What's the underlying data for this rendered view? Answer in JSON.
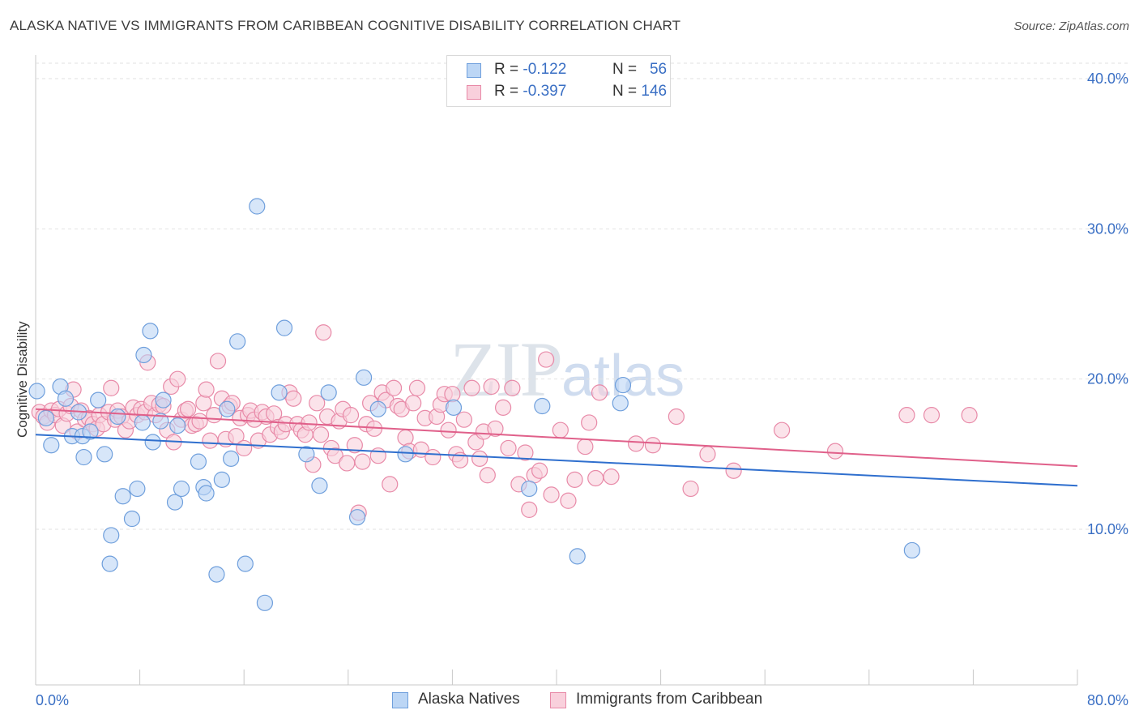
{
  "title": "ALASKA NATIVE VS IMMIGRANTS FROM CARIBBEAN COGNITIVE DISABILITY CORRELATION CHART",
  "source": "Source: ZipAtlas.com",
  "watermark": {
    "zip": "ZIP",
    "atlas": "atlas"
  },
  "legend": {
    "rows": [
      {
        "r_label": "R =",
        "r_value": "-0.122",
        "n_label": "N =",
        "n_value": "56",
        "color": "#a8c8f0",
        "border": "#6f9fdc"
      },
      {
        "r_label": "R =",
        "r_value": "-0.397",
        "n_label": "N =",
        "n_value": "146",
        "color": "#f7c0d0",
        "border": "#e88aa8"
      }
    ]
  },
  "bottom_legend": [
    {
      "label": "Alaska Natives",
      "color": "#bcd6f5",
      "border": "#6f9fdc"
    },
    {
      "label": "Immigrants from Caribbean",
      "color": "#f9d0dc",
      "border": "#e88aa8"
    }
  ],
  "chart_data": {
    "type": "scatter",
    "title": "ALASKA NATIVE VS IMMIGRANTS FROM CARIBBEAN COGNITIVE DISABILITY CORRELATION CHART",
    "xlabel": "",
    "ylabel": "Cognitive Disability",
    "xlim": [
      0,
      80
    ],
    "ylim": [
      0,
      41
    ],
    "x_tick_labels": [
      "0.0%",
      "80.0%"
    ],
    "y_ticks": [
      10,
      20,
      30,
      40
    ],
    "y_tick_labels": [
      "10.0%",
      "20.0%",
      "30.0%",
      "40.0%"
    ],
    "grid": true,
    "legend_position": "top-center",
    "series": [
      {
        "name": "Alaska Natives",
        "color": "#6f9fdc",
        "fill": "#bcd6f5",
        "line_color": "#2f6fce",
        "trend": {
          "x": [
            0,
            80
          ],
          "y": [
            16.3,
            12.9
          ]
        },
        "points": [
          [
            0.1,
            19.2
          ],
          [
            0.8,
            17.4
          ],
          [
            1.2,
            15.6
          ],
          [
            1.9,
            19.5
          ],
          [
            2.3,
            18.7
          ],
          [
            2.8,
            16.2
          ],
          [
            3.3,
            17.8
          ],
          [
            3.6,
            16.2
          ],
          [
            3.7,
            14.8
          ],
          [
            4.2,
            16.5
          ],
          [
            4.8,
            18.6
          ],
          [
            5.3,
            15.0
          ],
          [
            5.8,
            9.6
          ],
          [
            5.7,
            7.7
          ],
          [
            6.3,
            17.5
          ],
          [
            6.7,
            12.2
          ],
          [
            7.4,
            10.7
          ],
          [
            7.8,
            12.7
          ],
          [
            8.2,
            17.1
          ],
          [
            8.3,
            21.6
          ],
          [
            8.8,
            23.2
          ],
          [
            9.0,
            15.8
          ],
          [
            9.6,
            17.2
          ],
          [
            9.8,
            18.6
          ],
          [
            10.7,
            11.8
          ],
          [
            10.9,
            16.9
          ],
          [
            11.2,
            12.7
          ],
          [
            12.5,
            14.5
          ],
          [
            12.9,
            12.8
          ],
          [
            13.1,
            12.4
          ],
          [
            13.9,
            7.0
          ],
          [
            14.3,
            13.3
          ],
          [
            14.7,
            18.0
          ],
          [
            15.0,
            14.7
          ],
          [
            15.5,
            22.5
          ],
          [
            16.1,
            7.7
          ],
          [
            17.0,
            31.5
          ],
          [
            17.6,
            5.1
          ],
          [
            18.7,
            19.1
          ],
          [
            19.1,
            23.4
          ],
          [
            20.8,
            15.0
          ],
          [
            21.8,
            12.9
          ],
          [
            22.5,
            19.1
          ],
          [
            24.7,
            10.8
          ],
          [
            25.2,
            20.1
          ],
          [
            26.3,
            18.0
          ],
          [
            28.4,
            15.0
          ],
          [
            32.1,
            18.1
          ],
          [
            37.9,
            12.7
          ],
          [
            38.9,
            18.2
          ],
          [
            41.6,
            8.2
          ],
          [
            44.9,
            18.4
          ],
          [
            45.1,
            19.6
          ],
          [
            67.3,
            8.6
          ]
        ]
      },
      {
        "name": "Immigrants from Caribbean",
        "color": "#e88aa8",
        "fill": "#f9d0dc",
        "line_color": "#e0608a",
        "trend": {
          "x": [
            0,
            80
          ],
          "y": [
            18.0,
            14.2
          ]
        },
        "points": [
          [
            0.3,
            17.8
          ],
          [
            0.6,
            17.5
          ],
          [
            0.9,
            17.1
          ],
          [
            1.2,
            17.9
          ],
          [
            1.5,
            17.6
          ],
          [
            1.8,
            18.0
          ],
          [
            2.1,
            16.9
          ],
          [
            2.4,
            17.7
          ],
          [
            2.7,
            18.2
          ],
          [
            2.9,
            19.3
          ],
          [
            3.2,
            16.5
          ],
          [
            3.5,
            17.9
          ],
          [
            3.8,
            17.3
          ],
          [
            4.1,
            17.4
          ],
          [
            4.4,
            17.0
          ],
          [
            4.7,
            16.7
          ],
          [
            4.9,
            17.6
          ],
          [
            5.2,
            17.0
          ],
          [
            5.6,
            17.8
          ],
          [
            5.8,
            19.4
          ],
          [
            6.1,
            17.3
          ],
          [
            6.3,
            17.9
          ],
          [
            6.6,
            17.5
          ],
          [
            6.9,
            16.6
          ],
          [
            7.2,
            17.2
          ],
          [
            7.5,
            18.1
          ],
          [
            7.8,
            17.6
          ],
          [
            8.1,
            18.0
          ],
          [
            8.4,
            17.8
          ],
          [
            8.6,
            21.1
          ],
          [
            8.9,
            18.4
          ],
          [
            9.2,
            17.6
          ],
          [
            9.5,
            18.3
          ],
          [
            9.8,
            18.2
          ],
          [
            10.1,
            16.6
          ],
          [
            10.4,
            19.5
          ],
          [
            10.6,
            15.8
          ],
          [
            10.9,
            20.0
          ],
          [
            11.2,
            17.3
          ],
          [
            11.5,
            17.9
          ],
          [
            11.7,
            18.0
          ],
          [
            12.0,
            16.9
          ],
          [
            12.3,
            17.0
          ],
          [
            12.6,
            17.2
          ],
          [
            12.9,
            18.4
          ],
          [
            13.1,
            19.3
          ],
          [
            13.4,
            15.9
          ],
          [
            13.7,
            17.6
          ],
          [
            14.0,
            21.2
          ],
          [
            14.3,
            18.7
          ],
          [
            14.6,
            16.0
          ],
          [
            14.9,
            18.2
          ],
          [
            15.1,
            18.4
          ],
          [
            15.4,
            16.2
          ],
          [
            15.7,
            17.4
          ],
          [
            16.0,
            15.4
          ],
          [
            16.3,
            17.6
          ],
          [
            16.5,
            17.9
          ],
          [
            16.8,
            17.3
          ],
          [
            17.1,
            15.9
          ],
          [
            17.4,
            17.8
          ],
          [
            17.7,
            17.5
          ],
          [
            18.0,
            16.3
          ],
          [
            18.3,
            17.7
          ],
          [
            18.6,
            16.8
          ],
          [
            18.9,
            16.5
          ],
          [
            19.2,
            17.0
          ],
          [
            19.5,
            19.1
          ],
          [
            19.8,
            18.7
          ],
          [
            20.1,
            17.0
          ],
          [
            20.4,
            16.6
          ],
          [
            20.7,
            16.3
          ],
          [
            21.0,
            17.1
          ],
          [
            21.3,
            14.3
          ],
          [
            21.6,
            18.4
          ],
          [
            21.9,
            16.3
          ],
          [
            22.1,
            23.1
          ],
          [
            22.4,
            17.5
          ],
          [
            22.7,
            15.4
          ],
          [
            23.0,
            14.9
          ],
          [
            23.3,
            17.2
          ],
          [
            23.6,
            18.0
          ],
          [
            23.9,
            14.4
          ],
          [
            24.2,
            17.6
          ],
          [
            24.5,
            15.6
          ],
          [
            24.8,
            11.1
          ],
          [
            25.1,
            14.5
          ],
          [
            25.4,
            17.0
          ],
          [
            25.7,
            18.4
          ],
          [
            26.0,
            16.7
          ],
          [
            26.3,
            14.9
          ],
          [
            26.6,
            19.1
          ],
          [
            26.9,
            18.6
          ],
          [
            27.2,
            13.0
          ],
          [
            27.5,
            19.4
          ],
          [
            27.8,
            18.2
          ],
          [
            28.1,
            18.0
          ],
          [
            28.4,
            16.1
          ],
          [
            28.7,
            15.2
          ],
          [
            29.0,
            18.4
          ],
          [
            29.3,
            19.4
          ],
          [
            29.6,
            15.3
          ],
          [
            29.9,
            17.4
          ],
          [
            30.5,
            14.8
          ],
          [
            30.8,
            17.5
          ],
          [
            31.1,
            18.3
          ],
          [
            31.4,
            19.0
          ],
          [
            31.7,
            16.6
          ],
          [
            32.0,
            19.0
          ],
          [
            32.3,
            15.0
          ],
          [
            32.6,
            14.6
          ],
          [
            32.9,
            17.3
          ],
          [
            33.5,
            19.4
          ],
          [
            33.8,
            15.8
          ],
          [
            34.1,
            14.7
          ],
          [
            34.4,
            16.5
          ],
          [
            34.7,
            13.6
          ],
          [
            35.0,
            19.5
          ],
          [
            35.3,
            16.7
          ],
          [
            35.9,
            18.1
          ],
          [
            36.3,
            15.4
          ],
          [
            36.6,
            19.4
          ],
          [
            37.1,
            13.0
          ],
          [
            37.6,
            15.1
          ],
          [
            37.9,
            11.3
          ],
          [
            38.3,
            13.6
          ],
          [
            38.7,
            13.9
          ],
          [
            39.2,
            21.3
          ],
          [
            39.6,
            12.3
          ],
          [
            40.3,
            16.6
          ],
          [
            40.9,
            11.9
          ],
          [
            41.4,
            13.3
          ],
          [
            42.2,
            15.5
          ],
          [
            42.5,
            17.1
          ],
          [
            43.0,
            13.4
          ],
          [
            43.3,
            19.1
          ],
          [
            44.2,
            13.5
          ],
          [
            46.1,
            15.7
          ],
          [
            47.4,
            15.6
          ],
          [
            49.2,
            17.5
          ],
          [
            50.3,
            12.7
          ],
          [
            51.6,
            15.0
          ],
          [
            53.6,
            13.9
          ],
          [
            57.3,
            16.6
          ],
          [
            61.4,
            15.2
          ],
          [
            66.9,
            17.6
          ],
          [
            68.8,
            17.6
          ],
          [
            71.7,
            17.6
          ]
        ]
      }
    ]
  }
}
